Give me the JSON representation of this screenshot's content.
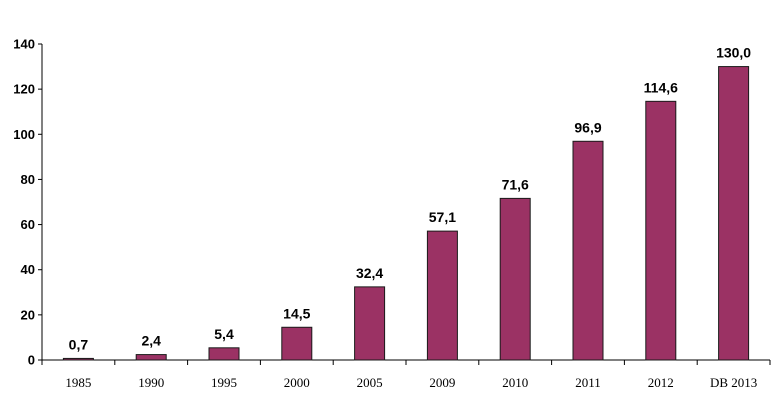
{
  "chart_data": {
    "type": "bar",
    "categories": [
      "1985",
      "1990",
      "1995",
      "2000",
      "2005",
      "2009",
      "2010",
      "2011",
      "2012",
      "DB 2013"
    ],
    "values": [
      0.7,
      2.4,
      5.4,
      14.5,
      32.4,
      57.1,
      71.6,
      96.9,
      114.6,
      130.0
    ],
    "data_labels": [
      "0,7",
      "2,4",
      "5,4",
      "14,5",
      "32,4",
      "57,1",
      "71,6",
      "96,9",
      "114,6",
      "130,0"
    ],
    "y_ticks": [
      "0",
      "20",
      "40",
      "60",
      "80",
      "100",
      "120",
      "140"
    ],
    "ylim": [
      0,
      140
    ],
    "grid": false,
    "legend": "none",
    "bar_color": "#9b3264",
    "bar_edge_color": "#1a1a1a",
    "title": "",
    "xlabel": "",
    "ylabel": ""
  }
}
